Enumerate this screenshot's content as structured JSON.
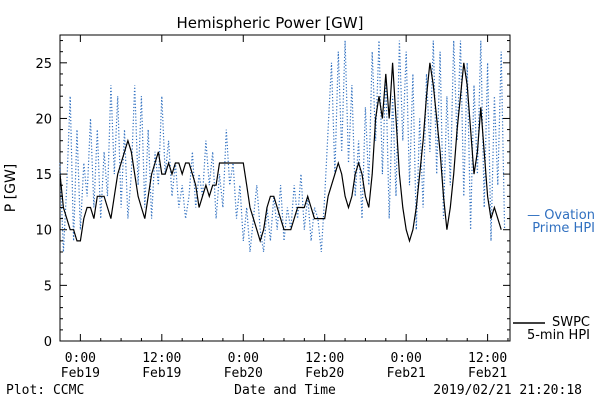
{
  "chart_data": {
    "type": "line",
    "title": "Hemispheric Power [GW]",
    "ylabel": "P [GW]",
    "xlabel": "Date and Time",
    "ylim": [
      0,
      27.5
    ],
    "yticks": [
      0,
      5,
      10,
      15,
      20,
      25
    ],
    "x_unit": "hours from 2019-02-19 00:00",
    "xlim": [
      -3,
      60
    ],
    "xticks": [
      {
        "x": 0,
        "time": "0:00",
        "date": "Feb19"
      },
      {
        "x": 12,
        "time": "12:00",
        "date": "Feb19"
      },
      {
        "x": 24,
        "time": "0:00",
        "date": "Feb20"
      },
      {
        "x": 36,
        "time": "12:00",
        "date": "Feb20"
      },
      {
        "x": 48,
        "time": "0:00",
        "date": "Feb21"
      },
      {
        "x": 60,
        "time": "12:00",
        "date": "Feb21"
      }
    ],
    "series": [
      {
        "name": "SWPC 5-min HPI",
        "label_lines": [
          "SWPC",
          "5-min HPI"
        ],
        "color": "#000000",
        "style": "solid",
        "points": [
          [
            -3,
            15
          ],
          [
            -2.5,
            12
          ],
          [
            -2,
            11
          ],
          [
            -1.5,
            10
          ],
          [
            -1,
            10
          ],
          [
            -0.5,
            9
          ],
          [
            0,
            9
          ],
          [
            0.5,
            11
          ],
          [
            1,
            12
          ],
          [
            1.5,
            12
          ],
          [
            2,
            11
          ],
          [
            2.5,
            13
          ],
          [
            3,
            13
          ],
          [
            3.5,
            13
          ],
          [
            4,
            12
          ],
          [
            4.5,
            11
          ],
          [
            5,
            13
          ],
          [
            5.5,
            15
          ],
          [
            6,
            16
          ],
          [
            6.5,
            17
          ],
          [
            7,
            18
          ],
          [
            7.5,
            17
          ],
          [
            8,
            15
          ],
          [
            8.5,
            13
          ],
          [
            9,
            12
          ],
          [
            9.5,
            11
          ],
          [
            10,
            13
          ],
          [
            10.5,
            15
          ],
          [
            11,
            16
          ],
          [
            11.5,
            17
          ],
          [
            12,
            15
          ],
          [
            12.5,
            15
          ],
          [
            13,
            16
          ],
          [
            13.5,
            15
          ],
          [
            14,
            16
          ],
          [
            14.5,
            16
          ],
          [
            15,
            15
          ],
          [
            15.5,
            16
          ],
          [
            16,
            16
          ],
          [
            16.5,
            15
          ],
          [
            17,
            14
          ],
          [
            17.5,
            12
          ],
          [
            18,
            13
          ],
          [
            18.5,
            14
          ],
          [
            19,
            13
          ],
          [
            19.5,
            14
          ],
          [
            20,
            14
          ],
          [
            20.5,
            16
          ],
          [
            21,
            16
          ],
          [
            22,
            16
          ],
          [
            23,
            16
          ],
          [
            24,
            16
          ],
          [
            24.5,
            14
          ],
          [
            25,
            12
          ],
          [
            25.5,
            11
          ],
          [
            26,
            10
          ],
          [
            26.5,
            9
          ],
          [
            27,
            10
          ],
          [
            27.5,
            12
          ],
          [
            28,
            13
          ],
          [
            28.5,
            13
          ],
          [
            29,
            12
          ],
          [
            29.5,
            11
          ],
          [
            30,
            10
          ],
          [
            31,
            10
          ],
          [
            31.5,
            11
          ],
          [
            32,
            12
          ],
          [
            33,
            12
          ],
          [
            33.5,
            13
          ],
          [
            34,
            12
          ],
          [
            34.5,
            11
          ],
          [
            35,
            11
          ],
          [
            36,
            11
          ],
          [
            36.5,
            13
          ],
          [
            37,
            14
          ],
          [
            37.5,
            15
          ],
          [
            38,
            16
          ],
          [
            38.5,
            15
          ],
          [
            39,
            13
          ],
          [
            39.5,
            12
          ],
          [
            40,
            13
          ],
          [
            40.5,
            15
          ],
          [
            41,
            16
          ],
          [
            41.5,
            15
          ],
          [
            42,
            13
          ],
          [
            42.5,
            12
          ],
          [
            43,
            15
          ],
          [
            43.5,
            20
          ],
          [
            44,
            22
          ],
          [
            44.5,
            20
          ],
          [
            45,
            24
          ],
          [
            45.5,
            20
          ],
          [
            46,
            25
          ],
          [
            46.5,
            20
          ],
          [
            47,
            15
          ],
          [
            47.5,
            12
          ],
          [
            48,
            10
          ],
          [
            48.5,
            9
          ],
          [
            49,
            10
          ],
          [
            49.5,
            12
          ],
          [
            50,
            15
          ],
          [
            50.5,
            18
          ],
          [
            51,
            22
          ],
          [
            51.5,
            25
          ],
          [
            52,
            23
          ],
          [
            52.5,
            20
          ],
          [
            53,
            17
          ],
          [
            53.5,
            13
          ],
          [
            54,
            10
          ],
          [
            54.5,
            12
          ],
          [
            55,
            15
          ],
          [
            55.5,
            19
          ],
          [
            56,
            22
          ],
          [
            56.5,
            25
          ],
          [
            57,
            23
          ],
          [
            57.5,
            19
          ],
          [
            58,
            15
          ],
          [
            58.5,
            17
          ],
          [
            59,
            21
          ],
          [
            59.5,
            17
          ],
          [
            60,
            13
          ],
          [
            60.5,
            11
          ],
          [
            61,
            12
          ],
          [
            61.5,
            11
          ],
          [
            62,
            10
          ]
        ]
      },
      {
        "name": "Ovation Prime HPI",
        "label_lines": [
          "— Ovation",
          "Prime HPI"
        ],
        "color": "#3070c0",
        "style": "dotted",
        "points": [
          [
            -3,
            16
          ],
          [
            -2.5,
            8
          ],
          [
            -2,
            14
          ],
          [
            -1.5,
            22
          ],
          [
            -1,
            9
          ],
          [
            -0.5,
            19
          ],
          [
            0,
            10
          ],
          [
            0.5,
            16
          ],
          [
            1,
            13
          ],
          [
            1.5,
            20
          ],
          [
            2,
            12
          ],
          [
            2.5,
            19
          ],
          [
            3,
            11
          ],
          [
            3.5,
            17
          ],
          [
            4,
            13
          ],
          [
            4.5,
            23
          ],
          [
            5,
            15
          ],
          [
            5.5,
            22
          ],
          [
            6,
            12
          ],
          [
            6.5,
            19
          ],
          [
            7,
            11
          ],
          [
            7.5,
            15
          ],
          [
            8,
            23
          ],
          [
            8.5,
            14
          ],
          [
            9,
            22
          ],
          [
            9.5,
            12
          ],
          [
            10,
            19
          ],
          [
            10.5,
            11
          ],
          [
            11,
            17
          ],
          [
            11.5,
            14
          ],
          [
            12,
            22
          ],
          [
            12.5,
            15
          ],
          [
            13,
            18
          ],
          [
            13.5,
            13
          ],
          [
            14,
            16
          ],
          [
            14.5,
            12
          ],
          [
            15,
            14
          ],
          [
            15.5,
            11
          ],
          [
            16,
            13
          ],
          [
            16.5,
            17
          ],
          [
            17,
            12
          ],
          [
            17.5,
            15
          ],
          [
            18,
            13
          ],
          [
            18.5,
            18
          ],
          [
            19,
            14
          ],
          [
            19.5,
            17
          ],
          [
            20,
            11
          ],
          [
            20.5,
            15
          ],
          [
            21,
            12
          ],
          [
            21.5,
            19
          ],
          [
            22,
            14
          ],
          [
            22.5,
            16
          ],
          [
            23,
            11
          ],
          [
            23.5,
            14
          ],
          [
            24,
            9
          ],
          [
            24.5,
            12
          ],
          [
            25,
            8
          ],
          [
            25.5,
            11
          ],
          [
            26,
            14
          ],
          [
            26.5,
            10
          ],
          [
            27,
            8
          ],
          [
            27.5,
            12
          ],
          [
            28,
            9
          ],
          [
            28.5,
            13
          ],
          [
            29,
            10
          ],
          [
            29.5,
            14
          ],
          [
            30,
            9
          ],
          [
            30.5,
            12
          ],
          [
            31,
            10
          ],
          [
            31.5,
            14
          ],
          [
            32,
            11
          ],
          [
            32.5,
            15
          ],
          [
            33,
            10
          ],
          [
            33.5,
            13
          ],
          [
            34,
            9
          ],
          [
            34.5,
            12
          ],
          [
            35,
            11
          ],
          [
            35.5,
            8
          ],
          [
            36,
            13
          ],
          [
            36.5,
            19
          ],
          [
            37,
            25
          ],
          [
            37.5,
            15
          ],
          [
            38,
            26
          ],
          [
            38.5,
            17
          ],
          [
            39,
            27
          ],
          [
            39.5,
            16
          ],
          [
            40,
            23
          ],
          [
            40.5,
            13
          ],
          [
            41,
            18
          ],
          [
            41.5,
            11
          ],
          [
            42,
            21
          ],
          [
            42.5,
            14
          ],
          [
            43,
            26
          ],
          [
            43.5,
            18
          ],
          [
            44,
            27
          ],
          [
            44.5,
            15
          ],
          [
            45,
            24
          ],
          [
            45.5,
            11
          ],
          [
            46,
            22
          ],
          [
            46.5,
            13
          ],
          [
            47,
            27
          ],
          [
            47.5,
            18
          ],
          [
            48,
            26
          ],
          [
            48.5,
            14
          ],
          [
            49,
            24
          ],
          [
            49.5,
            10
          ],
          [
            50,
            20
          ],
          [
            50.5,
            12
          ],
          [
            51,
            24
          ],
          [
            51.5,
            17
          ],
          [
            52,
            27
          ],
          [
            52.5,
            15
          ],
          [
            53,
            26
          ],
          [
            53.5,
            11
          ],
          [
            54,
            22
          ],
          [
            54.5,
            14
          ],
          [
            55,
            27
          ],
          [
            55.5,
            18
          ],
          [
            56,
            27
          ],
          [
            56.5,
            13
          ],
          [
            57,
            25
          ],
          [
            57.5,
            10
          ],
          [
            58,
            23
          ],
          [
            58.5,
            15
          ],
          [
            59,
            27
          ],
          [
            59.5,
            12
          ],
          [
            60,
            25
          ],
          [
            60.5,
            9
          ],
          [
            61,
            22
          ],
          [
            61.5,
            14
          ],
          [
            62,
            26
          ],
          [
            62.5,
            10
          ]
        ]
      }
    ],
    "annotations": {
      "left_footer": "Plot: CCMC",
      "timestamp": "2019/02/21 21:20:18"
    }
  }
}
